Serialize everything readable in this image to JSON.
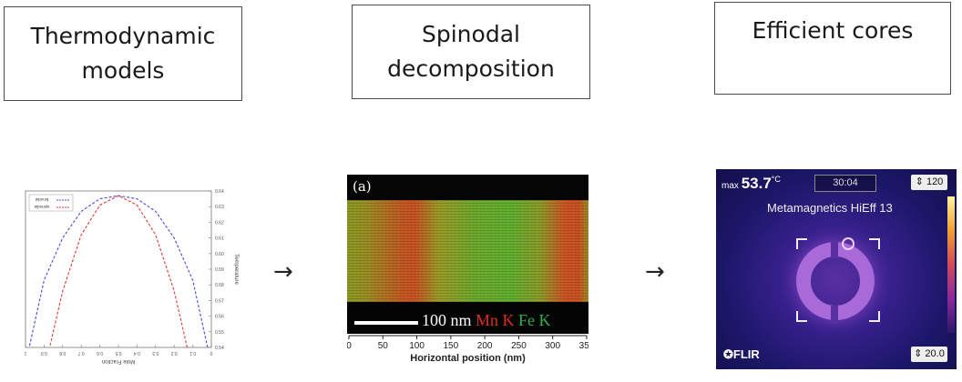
{
  "boxes": {
    "thermo": {
      "line1": "Thermodynamic",
      "line2": "models"
    },
    "spinodal": {
      "line1": "Spinodal",
      "line2": "decomposition"
    },
    "cores": {
      "line1": "Efficient cores"
    }
  },
  "arrows": {
    "symbol": "→"
  },
  "thermo_plot": {
    "legend": [
      "binodal",
      "spinodal"
    ],
    "xlabel": "Mole Fraction",
    "ylabel": "Temperature",
    "x_ticks": [
      "0",
      "0.1",
      "0.2",
      "0.3",
      "0.4",
      "0.5",
      "0.6",
      "0.7",
      "0.8",
      "0.9",
      "1"
    ],
    "y_ticks": [
      "0.54",
      "0.55",
      "0.56",
      "0.57",
      "0.58",
      "0.59",
      "0.60",
      "0.61",
      "0.62",
      "0.63",
      "0.64"
    ],
    "colors": {
      "binodal": "#4a4ae0",
      "spinodal": "#e03a3a"
    }
  },
  "chart_data": {
    "type": "line",
    "title": "",
    "xlabel": "Mole Fraction",
    "ylabel": "Temperature",
    "xlim": [
      0,
      1
    ],
    "ylim": [
      0.54,
      0.64
    ],
    "series": [
      {
        "name": "binodal",
        "x": [
          0.02,
          0.1,
          0.2,
          0.3,
          0.4,
          0.5,
          0.6,
          0.7,
          0.8,
          0.9,
          0.98
        ],
        "values": [
          0.54,
          0.583,
          0.61,
          0.627,
          0.635,
          0.637,
          0.635,
          0.627,
          0.61,
          0.583,
          0.54
        ]
      },
      {
        "name": "spinodal",
        "x": [
          0.13,
          0.2,
          0.3,
          0.4,
          0.5,
          0.6,
          0.7,
          0.8,
          0.87
        ],
        "values": [
          0.54,
          0.576,
          0.612,
          0.631,
          0.637,
          0.631,
          0.612,
          0.576,
          0.54
        ]
      }
    ]
  },
  "spinodal_image": {
    "panel_label": "(a)",
    "scale_text": "100 nm",
    "mn_label": "Mn K",
    "fe_label": "Fe K",
    "xlabel": "Horizontal position (nm)",
    "x_ticks": [
      "0",
      "50",
      "100",
      "150",
      "200",
      "250",
      "300",
      "350"
    ]
  },
  "thermal_camera": {
    "max_prefix": "max",
    "max_value": "53.7",
    "max_unit": "°C",
    "time": "30:04",
    "range_high": "⇕ 120",
    "range_low": "⇕ 20.0",
    "title": "Metamagnetics HiEff 13",
    "brand": "✪FLIR"
  }
}
